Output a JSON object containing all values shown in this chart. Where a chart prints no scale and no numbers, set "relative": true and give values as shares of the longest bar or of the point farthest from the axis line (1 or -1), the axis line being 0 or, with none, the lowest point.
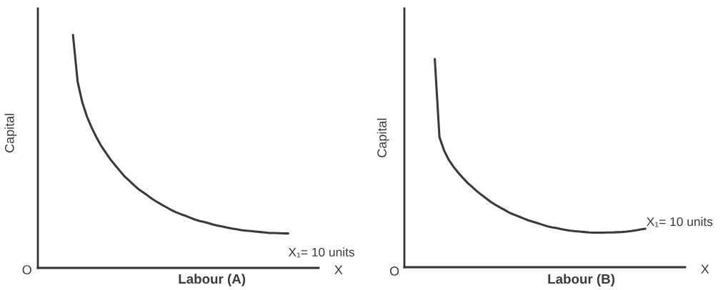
{
  "chart_data": [
    {
      "type": "line",
      "relative": true,
      "xlabel": "Labour (A)",
      "ylabel": "Capital",
      "line_style": "solid",
      "categories": [
        null,
        null,
        null,
        null,
        null,
        null,
        null,
        null,
        null,
        null,
        null,
        null,
        null,
        null,
        null,
        null,
        null,
        null,
        null,
        null,
        null,
        null,
        null,
        null,
        null,
        null,
        null,
        null,
        null,
        null,
        null,
        null,
        null,
        null,
        null,
        null,
        null,
        null,
        null,
        null,
        null,
        null,
        null,
        null,
        null,
        null,
        null,
        null,
        null,
        null,
        null,
        null,
        null,
        null,
        null,
        null,
        null,
        null,
        null,
        null
      ],
      "series": [
        {
          "color": "#3a3a3a",
          "values": [
            null,
            null,
            null,
            null,
            null,
            null,
            null,
            1.0,
            0.799,
            0.71,
            0.649,
            0.602,
            0.561,
            0.525,
            0.495,
            0.466,
            0.441,
            0.417,
            0.393,
            0.375,
            0.356,
            0.338,
            0.324,
            0.31,
            0.295,
            0.283,
            0.271,
            0.26,
            0.249,
            0.239,
            0.231,
            0.224,
            0.216,
            0.208,
            0.202,
            0.197,
            0.192,
            0.186,
            0.181,
            0.177,
            0.173,
            0.169,
            0.166,
            0.162,
            0.16,
            0.158,
            0.156,
            0.154,
            0.152,
            0.15,
            0.15,
            0.149,
            0.148,
            0.148,
            null,
            null,
            null,
            null,
            null,
            null
          ]
        }
      ],
      "annotations": [
        "O",
        "X",
        "X₁= 10 units"
      ]
    },
    {
      "type": "line",
      "relative": true,
      "xlabel": "Labour (B)",
      "ylabel": "Capital",
      "line_style": "solid",
      "categories": [
        null,
        null,
        null,
        null,
        null,
        null,
        null,
        null,
        null,
        null,
        null,
        null,
        null,
        null,
        null,
        null,
        null,
        null,
        null,
        null,
        null,
        null,
        null,
        null,
        null,
        null,
        null,
        null,
        null,
        null,
        null,
        null,
        null,
        null,
        null,
        null,
        null,
        null,
        null,
        null,
        null,
        null,
        null,
        null,
        null,
        null,
        null,
        null,
        null,
        null,
        null,
        null,
        null,
        null,
        null,
        null,
        null,
        null,
        null,
        null
      ],
      "series": [
        {
          "color": "#3a3a3a",
          "values": [
            null,
            null,
            null,
            null,
            null,
            null,
            1.0,
            0.624,
            0.56,
            0.515,
            0.482,
            0.454,
            0.429,
            0.405,
            0.385,
            0.365,
            0.347,
            0.33,
            0.313,
            0.299,
            0.286,
            0.274,
            0.261,
            0.252,
            0.243,
            0.234,
            0.225,
            0.218,
            0.211,
            0.204,
            0.197,
            0.192,
            0.188,
            0.183,
            0.179,
            0.175,
            0.173,
            0.171,
            0.169,
            0.167,
            0.166,
            0.166,
            0.166,
            0.167,
            0.167,
            0.168,
            0.169,
            0.171,
            0.174,
            0.177,
            0.181,
            0.185,
            null,
            null,
            null,
            null,
            null,
            null,
            null,
            null
          ]
        }
      ],
      "annotations": [
        "O",
        "X",
        "X₁= 10 units"
      ]
    }
  ]
}
